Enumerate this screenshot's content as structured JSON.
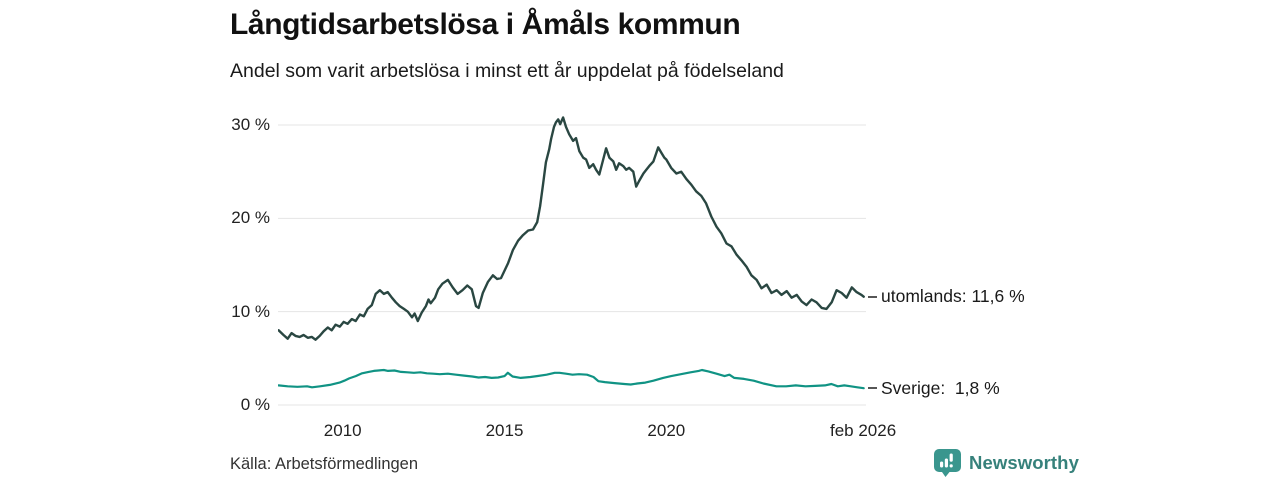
{
  "header": {
    "title": "Långtidsarbetslösa i Åmåls kommun",
    "subtitle": "Andel som varit arbetslösa i minst ett år uppdelat på födelseland"
  },
  "chart_data": {
    "type": "line",
    "title": "Långtidsarbetslösa i Åmåls kommun",
    "subtitle": "Andel som varit arbetslösa i minst ett år uppdelat på födelseland",
    "unit": "%",
    "xlim": [
      2008.0,
      2026.17
    ],
    "ylim": [
      0,
      31.9
    ],
    "grid": "horizontal",
    "grid_color": "#e4e4e4",
    "tick_color": "#222222",
    "y_ticks": [
      {
        "value": 0,
        "label": "0 %"
      },
      {
        "value": 10,
        "label": "10 %"
      },
      {
        "value": 20,
        "label": "20 %"
      },
      {
        "value": 30,
        "label": "30 %"
      }
    ],
    "x_ticks": [
      {
        "value": 2010,
        "label": "2010"
      },
      {
        "value": 2015,
        "label": "2015"
      },
      {
        "value": 2020,
        "label": "2020"
      },
      {
        "value": 2026.08,
        "label": "feb 2026"
      }
    ],
    "series": [
      {
        "name": "utomlands",
        "end_label": "utomlands: 11,6 %",
        "color": "#2a4742",
        "stroke_width": 2.4,
        "points": [
          [
            2008.02,
            8.0
          ],
          [
            2008.17,
            7.5
          ],
          [
            2008.3,
            7.1
          ],
          [
            2008.42,
            7.7
          ],
          [
            2008.54,
            7.4
          ],
          [
            2008.67,
            7.3
          ],
          [
            2008.79,
            7.5
          ],
          [
            2008.92,
            7.2
          ],
          [
            2009.04,
            7.3
          ],
          [
            2009.16,
            7.0
          ],
          [
            2009.29,
            7.4
          ],
          [
            2009.41,
            7.9
          ],
          [
            2009.54,
            8.3
          ],
          [
            2009.66,
            8.0
          ],
          [
            2009.78,
            8.6
          ],
          [
            2009.91,
            8.4
          ],
          [
            2010.03,
            8.9
          ],
          [
            2010.15,
            8.7
          ],
          [
            2010.28,
            9.2
          ],
          [
            2010.4,
            9.0
          ],
          [
            2010.53,
            9.7
          ],
          [
            2010.65,
            9.5
          ],
          [
            2010.77,
            10.3
          ],
          [
            2010.9,
            10.7
          ],
          [
            2011.02,
            11.9
          ],
          [
            2011.15,
            12.3
          ],
          [
            2011.27,
            11.9
          ],
          [
            2011.39,
            12.1
          ],
          [
            2011.52,
            11.5
          ],
          [
            2011.64,
            11.0
          ],
          [
            2011.76,
            10.6
          ],
          [
            2011.89,
            10.3
          ],
          [
            2012.01,
            10.0
          ],
          [
            2012.14,
            9.4
          ],
          [
            2012.22,
            9.8
          ],
          [
            2012.32,
            9.0
          ],
          [
            2012.44,
            9.9
          ],
          [
            2012.57,
            10.6
          ],
          [
            2012.65,
            11.3
          ],
          [
            2012.72,
            10.9
          ],
          [
            2012.85,
            11.5
          ],
          [
            2012.95,
            12.4
          ],
          [
            2013.08,
            13.0
          ],
          [
            2013.25,
            13.4
          ],
          [
            2013.4,
            12.6
          ],
          [
            2013.55,
            11.9
          ],
          [
            2013.7,
            12.3
          ],
          [
            2013.85,
            12.8
          ],
          [
            2013.99,
            12.4
          ],
          [
            2014.12,
            10.6
          ],
          [
            2014.2,
            10.4
          ],
          [
            2014.33,
            12.0
          ],
          [
            2014.49,
            13.2
          ],
          [
            2014.64,
            13.9
          ],
          [
            2014.77,
            13.5
          ],
          [
            2014.89,
            13.6
          ],
          [
            2015.11,
            15.2
          ],
          [
            2015.26,
            16.6
          ],
          [
            2015.42,
            17.6
          ],
          [
            2015.57,
            18.2
          ],
          [
            2015.73,
            18.7
          ],
          [
            2015.88,
            18.8
          ],
          [
            2016.01,
            19.6
          ],
          [
            2016.1,
            21.3
          ],
          [
            2016.19,
            23.6
          ],
          [
            2016.28,
            26.0
          ],
          [
            2016.38,
            27.4
          ],
          [
            2016.44,
            28.5
          ],
          [
            2016.53,
            29.8
          ],
          [
            2016.59,
            30.3
          ],
          [
            2016.66,
            30.6
          ],
          [
            2016.72,
            30.1
          ],
          [
            2016.81,
            30.8
          ],
          [
            2016.9,
            29.8
          ],
          [
            2017.0,
            29.0
          ],
          [
            2017.12,
            28.3
          ],
          [
            2017.21,
            28.6
          ],
          [
            2017.31,
            27.2
          ],
          [
            2017.43,
            26.5
          ],
          [
            2017.52,
            26.3
          ],
          [
            2017.62,
            25.4
          ],
          [
            2017.74,
            25.8
          ],
          [
            2017.83,
            25.2
          ],
          [
            2017.93,
            24.7
          ],
          [
            2018.05,
            26.3
          ],
          [
            2018.14,
            27.5
          ],
          [
            2018.24,
            26.5
          ],
          [
            2018.36,
            26.1
          ],
          [
            2018.45,
            25.2
          ],
          [
            2018.54,
            25.9
          ],
          [
            2018.67,
            25.6
          ],
          [
            2018.76,
            25.2
          ],
          [
            2018.85,
            25.4
          ],
          [
            2018.98,
            25.0
          ],
          [
            2019.07,
            23.4
          ],
          [
            2019.16,
            24.0
          ],
          [
            2019.29,
            24.8
          ],
          [
            2019.38,
            25.2
          ],
          [
            2019.47,
            25.6
          ],
          [
            2019.6,
            26.1
          ],
          [
            2019.69,
            27.0
          ],
          [
            2019.75,
            27.6
          ],
          [
            2019.85,
            27.0
          ],
          [
            2019.94,
            26.5
          ],
          [
            2020.0,
            26.3
          ],
          [
            2020.15,
            25.4
          ],
          [
            2020.31,
            24.8
          ],
          [
            2020.46,
            25.0
          ],
          [
            2020.62,
            24.2
          ],
          [
            2020.77,
            23.6
          ],
          [
            2020.92,
            22.9
          ],
          [
            2021.08,
            22.4
          ],
          [
            2021.23,
            21.6
          ],
          [
            2021.39,
            20.2
          ],
          [
            2021.55,
            19.1
          ],
          [
            2021.7,
            18.4
          ],
          [
            2021.86,
            17.3
          ],
          [
            2022.01,
            17.0
          ],
          [
            2022.17,
            16.1
          ],
          [
            2022.32,
            15.5
          ],
          [
            2022.48,
            14.8
          ],
          [
            2022.63,
            13.9
          ],
          [
            2022.79,
            13.4
          ],
          [
            2022.94,
            12.5
          ],
          [
            2023.1,
            12.9
          ],
          [
            2023.25,
            12.0
          ],
          [
            2023.41,
            12.3
          ],
          [
            2023.56,
            11.8
          ],
          [
            2023.72,
            12.2
          ],
          [
            2023.87,
            11.5
          ],
          [
            2024.03,
            11.8
          ],
          [
            2024.18,
            11.1
          ],
          [
            2024.33,
            10.7
          ],
          [
            2024.49,
            11.3
          ],
          [
            2024.64,
            11.0
          ],
          [
            2024.8,
            10.4
          ],
          [
            2024.95,
            10.3
          ],
          [
            2025.11,
            11.0
          ],
          [
            2025.26,
            12.3
          ],
          [
            2025.42,
            12.0
          ],
          [
            2025.57,
            11.5
          ],
          [
            2025.73,
            12.6
          ],
          [
            2025.88,
            12.1
          ],
          [
            2026.03,
            11.8
          ],
          [
            2026.1,
            11.6
          ]
        ]
      },
      {
        "name": "Sverige",
        "end_label": "Sverige:  1,8 %",
        "color": "#109384",
        "stroke_width": 2.2,
        "points": [
          [
            2008.02,
            2.1
          ],
          [
            2008.3,
            2.0
          ],
          [
            2008.6,
            1.95
          ],
          [
            2008.9,
            2.0
          ],
          [
            2009.05,
            1.9
          ],
          [
            2009.3,
            2.0
          ],
          [
            2009.6,
            2.15
          ],
          [
            2009.9,
            2.4
          ],
          [
            2010.05,
            2.6
          ],
          [
            2010.2,
            2.85
          ],
          [
            2010.4,
            3.1
          ],
          [
            2010.6,
            3.4
          ],
          [
            2010.8,
            3.55
          ],
          [
            2010.96,
            3.65
          ],
          [
            2011.1,
            3.7
          ],
          [
            2011.27,
            3.75
          ],
          [
            2011.4,
            3.65
          ],
          [
            2011.6,
            3.7
          ],
          [
            2011.8,
            3.55
          ],
          [
            2012.0,
            3.5
          ],
          [
            2012.2,
            3.45
          ],
          [
            2012.4,
            3.5
          ],
          [
            2012.6,
            3.4
          ],
          [
            2012.8,
            3.35
          ],
          [
            2013.0,
            3.3
          ],
          [
            2013.25,
            3.35
          ],
          [
            2013.5,
            3.25
          ],
          [
            2013.75,
            3.15
          ],
          [
            2014.0,
            3.05
          ],
          [
            2014.2,
            2.95
          ],
          [
            2014.4,
            3.0
          ],
          [
            2014.6,
            2.9
          ],
          [
            2014.8,
            2.95
          ],
          [
            2015.0,
            3.1
          ],
          [
            2015.1,
            3.45
          ],
          [
            2015.25,
            3.05
          ],
          [
            2015.5,
            2.9
          ],
          [
            2015.8,
            3.0
          ],
          [
            2016.0,
            3.1
          ],
          [
            2016.3,
            3.25
          ],
          [
            2016.55,
            3.45
          ],
          [
            2016.7,
            3.45
          ],
          [
            2016.9,
            3.35
          ],
          [
            2017.1,
            3.25
          ],
          [
            2017.3,
            3.3
          ],
          [
            2017.55,
            3.25
          ],
          [
            2017.75,
            3.0
          ],
          [
            2017.9,
            2.55
          ],
          [
            2018.1,
            2.45
          ],
          [
            2018.4,
            2.35
          ],
          [
            2018.7,
            2.25
          ],
          [
            2018.9,
            2.2
          ],
          [
            2019.1,
            2.3
          ],
          [
            2019.35,
            2.4
          ],
          [
            2019.6,
            2.6
          ],
          [
            2019.9,
            2.9
          ],
          [
            2020.15,
            3.1
          ],
          [
            2020.45,
            3.3
          ],
          [
            2020.75,
            3.5
          ],
          [
            2021.0,
            3.65
          ],
          [
            2021.1,
            3.75
          ],
          [
            2021.3,
            3.6
          ],
          [
            2021.55,
            3.35
          ],
          [
            2021.8,
            3.1
          ],
          [
            2021.95,
            3.25
          ],
          [
            2022.1,
            2.9
          ],
          [
            2022.4,
            2.8
          ],
          [
            2022.7,
            2.6
          ],
          [
            2023.0,
            2.3
          ],
          [
            2023.4,
            2.0
          ],
          [
            2023.7,
            2.0
          ],
          [
            2024.0,
            2.1
          ],
          [
            2024.3,
            2.0
          ],
          [
            2024.6,
            2.05
          ],
          [
            2024.9,
            2.1
          ],
          [
            2025.1,
            2.25
          ],
          [
            2025.3,
            2.0
          ],
          [
            2025.5,
            2.1
          ],
          [
            2025.7,
            2.0
          ],
          [
            2025.9,
            1.9
          ],
          [
            2026.1,
            1.8
          ]
        ]
      }
    ],
    "legend_position": "right-end-labels"
  },
  "footer": {
    "source": "Källa: Arbetsförmedlingen",
    "logo_text": "Newsworthy",
    "logo_color": "#36817b",
    "logo_icon_color": "#3a968e"
  }
}
